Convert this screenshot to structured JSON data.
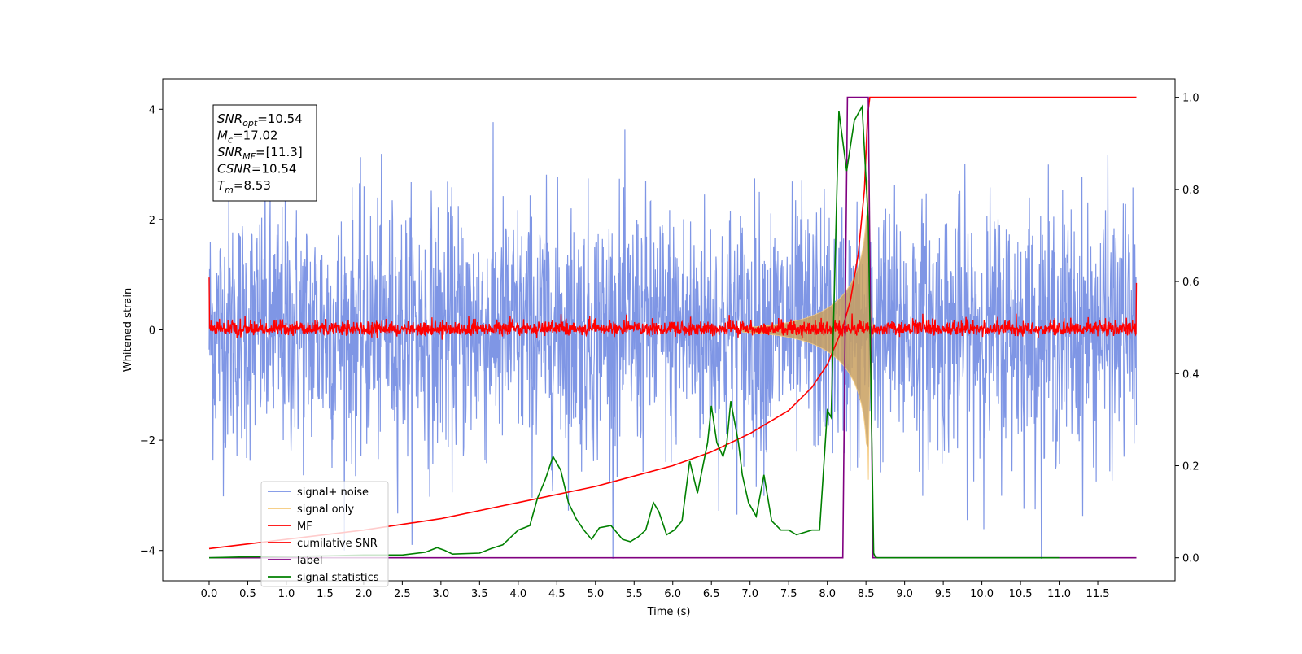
{
  "chart_data": {
    "type": "line",
    "xlabel": "Time (s)",
    "ylabel": "Whitened strain",
    "xlim": [
      -0.6,
      12.5
    ],
    "ylim": [
      -4.55,
      4.55
    ],
    "y2lim": [
      -0.05,
      1.04
    ],
    "x_ticks": [
      "0.0",
      "0.5",
      "1.0",
      "1.5",
      "2.0",
      "2.5",
      "3.0",
      "3.5",
      "4.0",
      "4.5",
      "5.0",
      "5.5",
      "6.0",
      "6.5",
      "7.0",
      "7.5",
      "8.0",
      "8.5",
      "9.0",
      "9.5",
      "10.0",
      "10.5",
      "11.0",
      "11.5"
    ],
    "y_ticks": [
      "−4",
      "−2",
      "0",
      "2",
      "4"
    ],
    "y2_ticks": [
      "0.0",
      "0.2",
      "0.4",
      "0.6",
      "0.8",
      "1.0"
    ],
    "annotation": [
      {
        "sym": "SNR",
        "sub": "opt",
        "val": "=10.54"
      },
      {
        "sym": "M",
        "sub": "c",
        "val": "=17.02"
      },
      {
        "sym": "SNR",
        "sub": "MF",
        "val": "=[11.3]"
      },
      {
        "sym": "CSNR",
        "sub": "",
        "val": "=10.54"
      },
      {
        "sym": "T",
        "sub": "m",
        "val": "=8.53"
      }
    ],
    "legend_position": "lower-left",
    "series": [
      {
        "name": "signal+ noise",
        "color": "#7890e4",
        "axis": "left",
        "style": "noise",
        "description_values": {
          "x_start": 0.0,
          "x_end": 12.0,
          "std": 1.0,
          "peak": 4.15
        }
      },
      {
        "name": "signal only",
        "color": "#f5c878",
        "axis": "left",
        "style": "chirp",
        "description_values": {
          "t_merger": 8.53,
          "peak_amplitude": 2.9
        }
      },
      {
        "name": "MF",
        "color": "#ff0000",
        "axis": "left",
        "style": "mf",
        "description_values": {
          "baseline": 0.0,
          "amplitude": 0.15
        }
      },
      {
        "name": "cumilative SNR",
        "color": "#ff0000",
        "axis": "right",
        "x": [
          0.0,
          1.0,
          2.0,
          3.0,
          4.0,
          5.0,
          6.0,
          6.5,
          7.0,
          7.5,
          7.8,
          8.0,
          8.2,
          8.3,
          8.4,
          8.48,
          8.52,
          8.55,
          9.0,
          10.0,
          11.0,
          12.0
        ],
        "y": [
          0.02,
          0.04,
          0.06,
          0.085,
          0.12,
          0.155,
          0.2,
          0.23,
          0.27,
          0.32,
          0.37,
          0.42,
          0.5,
          0.56,
          0.66,
          0.8,
          0.96,
          1.0,
          1.0,
          1.0,
          1.0,
          1.0
        ]
      },
      {
        "name": "label",
        "color": "#800080",
        "axis": "right",
        "x": [
          0.0,
          8.2,
          8.26,
          8.53,
          8.59,
          12.0
        ],
        "y": [
          0.0,
          0.0,
          1.0,
          1.0,
          0.0,
          0.0
        ]
      },
      {
        "name": "signal statistics",
        "color": "#008000",
        "axis": "right",
        "x": [
          0.0,
          0.5,
          1.0,
          1.5,
          2.0,
          2.5,
          2.8,
          2.95,
          3.05,
          3.15,
          3.5,
          3.65,
          3.8,
          4.0,
          4.15,
          4.25,
          4.35,
          4.45,
          4.55,
          4.65,
          4.75,
          4.85,
          4.95,
          5.05,
          5.2,
          5.35,
          5.45,
          5.55,
          5.65,
          5.75,
          5.82,
          5.92,
          6.02,
          6.12,
          6.22,
          6.32,
          6.45,
          6.5,
          6.57,
          6.65,
          6.7,
          6.75,
          6.85,
          6.9,
          6.98,
          7.08,
          7.18,
          7.28,
          7.4,
          7.5,
          7.6,
          7.7,
          7.8,
          7.9,
          8.0,
          8.05,
          8.15,
          8.25,
          8.35,
          8.45,
          8.53,
          8.6,
          8.62,
          8.65,
          9.0,
          10.0,
          11.0,
          11.0
        ],
        "y": [
          0.0,
          0.002,
          0.003,
          0.004,
          0.006,
          0.006,
          0.012,
          0.022,
          0.016,
          0.008,
          0.01,
          0.02,
          0.028,
          0.06,
          0.07,
          0.13,
          0.17,
          0.22,
          0.19,
          0.12,
          0.085,
          0.06,
          0.04,
          0.065,
          0.07,
          0.04,
          0.035,
          0.045,
          0.06,
          0.12,
          0.1,
          0.05,
          0.06,
          0.08,
          0.21,
          0.14,
          0.25,
          0.33,
          0.25,
          0.22,
          0.25,
          0.34,
          0.25,
          0.18,
          0.12,
          0.09,
          0.18,
          0.08,
          0.06,
          0.06,
          0.05,
          0.055,
          0.06,
          0.06,
          0.32,
          0.305,
          0.97,
          0.84,
          0.95,
          0.98,
          0.73,
          0.01,
          0.002,
          0.0,
          0.0,
          0.0,
          0.0,
          0.0
        ]
      }
    ]
  }
}
